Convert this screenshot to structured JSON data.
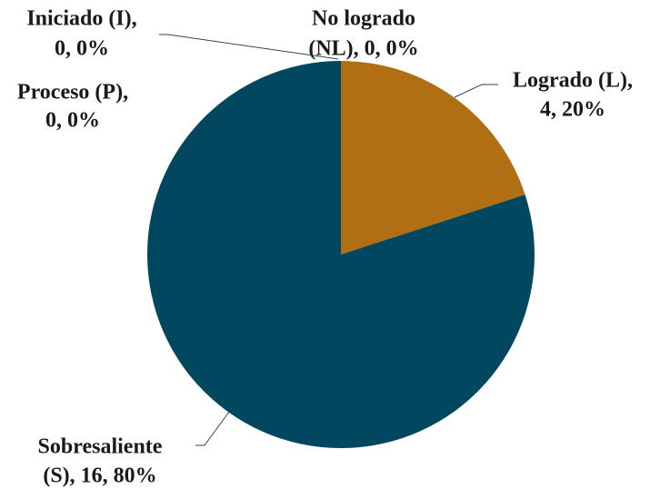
{
  "chart_data": {
    "type": "pie",
    "categories": [
      "No logrado (NL)",
      "Logrado (L)",
      "Sobresaliente (S)",
      "Proceso (P)",
      "Iniciado (I)"
    ],
    "values": [
      0,
      4,
      16,
      0,
      0
    ],
    "value_labels": [
      [
        "No logrado",
        "(NL), 0, 0%"
      ],
      [
        "Logrado (L),",
        "4, 20%"
      ],
      [
        "Sobresaliente",
        "(S), 16, 80%"
      ],
      [
        "Proceso (P),",
        "0, 0%"
      ],
      [
        "Iniciado (I),",
        "0, 0%"
      ]
    ],
    "colors": [
      "#5b7f95",
      "#b06f12",
      "#00475f",
      "#7a8a94",
      "#9aa6ad"
    ]
  }
}
